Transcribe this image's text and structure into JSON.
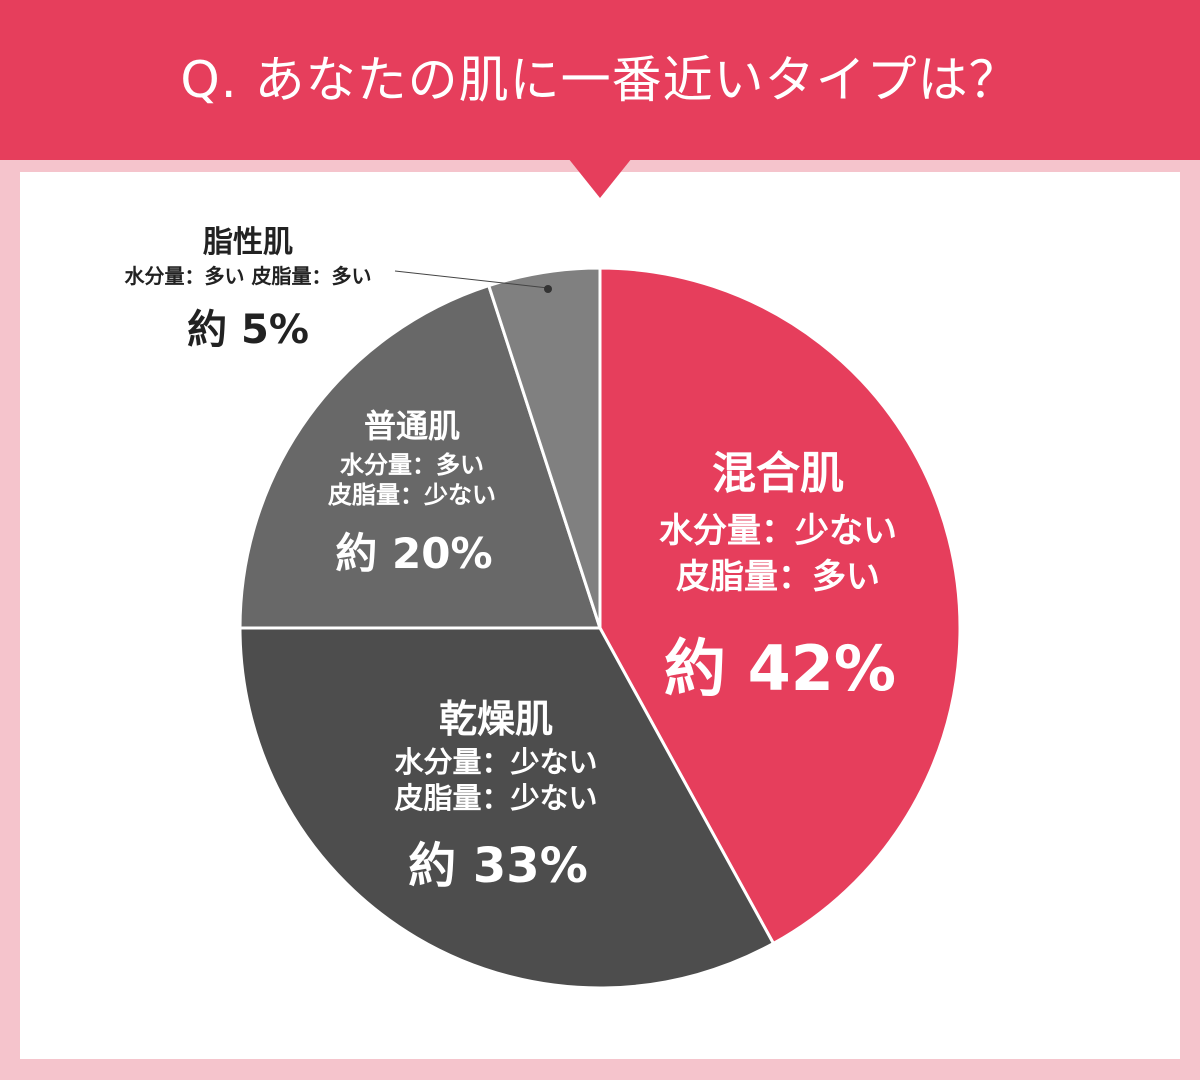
{
  "header": {
    "title": "Q. あなたの肌に一番近いタイプは？"
  },
  "chart_data": {
    "type": "pie",
    "title": "Q. あなたの肌に一番近いタイプは？",
    "slices": [
      {
        "label": "混合肌",
        "detail1": "水分量：少ない",
        "detail2": "皮脂量：多い",
        "value": 42,
        "value_text": "約 42%",
        "color": "#e63e5c"
      },
      {
        "label": "乾燥肌",
        "detail1": "水分量：少ない",
        "detail2": "皮脂量：少ない",
        "value": 33,
        "value_text": "約 33%",
        "color": "#4d4d4d"
      },
      {
        "label": "普通肌",
        "detail1": "水分量：多い",
        "detail2": "皮脂量：少ない",
        "value": 20,
        "value_text": "約 20%",
        "color": "#686868"
      },
      {
        "label": "脂性肌",
        "detail1": "水分量：多い  皮脂量：多い",
        "detail2": "",
        "value": 5,
        "value_text": "約 5%",
        "color": "#808080"
      }
    ]
  }
}
